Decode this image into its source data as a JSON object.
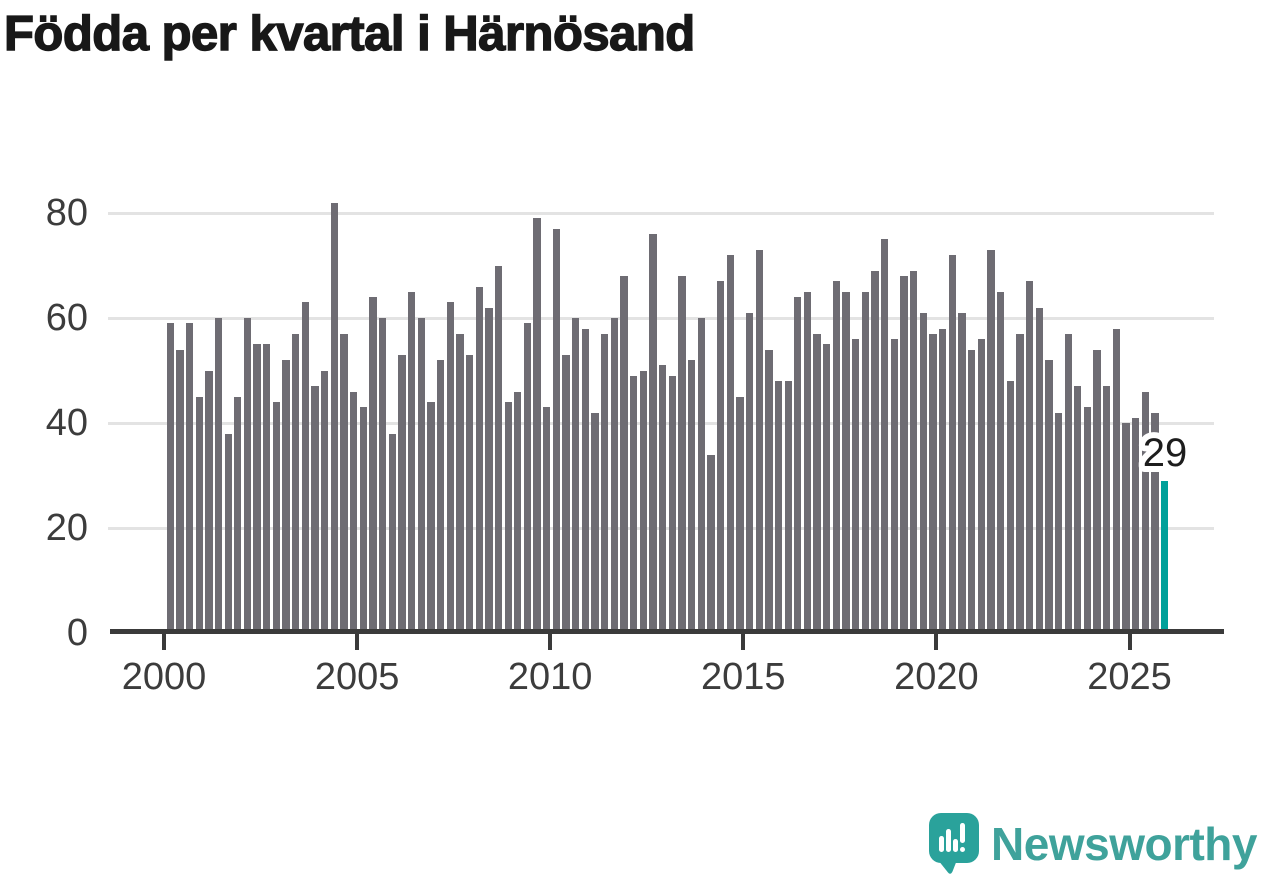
{
  "title": "Födda per kvartal i Härnösand",
  "chart_data": {
    "type": "bar",
    "title": "Födda per kvartal i Härnösand",
    "x_unit": "quarter",
    "frequency": "quarterly",
    "x_range": "2000 Q1 – 2025 Q4",
    "years": [
      {
        "year": 2000,
        "values": [
          59,
          54,
          59,
          45
        ]
      },
      {
        "year": 2001,
        "values": [
          50,
          60,
          38,
          45
        ]
      },
      {
        "year": 2002,
        "values": [
          60,
          55,
          55,
          44
        ]
      },
      {
        "year": 2003,
        "values": [
          52,
          57,
          63,
          47
        ]
      },
      {
        "year": 2004,
        "values": [
          50,
          82,
          57,
          46
        ]
      },
      {
        "year": 2005,
        "values": [
          43,
          64,
          60,
          38
        ]
      },
      {
        "year": 2006,
        "values": [
          53,
          65,
          60,
          44
        ]
      },
      {
        "year": 2007,
        "values": [
          52,
          63,
          57,
          53
        ]
      },
      {
        "year": 2008,
        "values": [
          66,
          62,
          70,
          44
        ]
      },
      {
        "year": 2009,
        "values": [
          46,
          59,
          79,
          43
        ]
      },
      {
        "year": 2010,
        "values": [
          77,
          53,
          60,
          58
        ]
      },
      {
        "year": 2011,
        "values": [
          42,
          57,
          60,
          68
        ]
      },
      {
        "year": 2012,
        "values": [
          49,
          50,
          76,
          51
        ]
      },
      {
        "year": 2013,
        "values": [
          49,
          68,
          52,
          60
        ]
      },
      {
        "year": 2014,
        "values": [
          34,
          67,
          72,
          45
        ]
      },
      {
        "year": 2015,
        "values": [
          61,
          73,
          54,
          48
        ]
      },
      {
        "year": 2016,
        "values": [
          48,
          64,
          65,
          57
        ]
      },
      {
        "year": 2017,
        "values": [
          55,
          67,
          65,
          56
        ]
      },
      {
        "year": 2018,
        "values": [
          65,
          69,
          75,
          56
        ]
      },
      {
        "year": 2019,
        "values": [
          68,
          69,
          61,
          57
        ]
      },
      {
        "year": 2020,
        "values": [
          58,
          72,
          61,
          54
        ]
      },
      {
        "year": 2021,
        "values": [
          56,
          73,
          65,
          48
        ]
      },
      {
        "year": 2022,
        "values": [
          57,
          67,
          62,
          52
        ]
      },
      {
        "year": 2023,
        "values": [
          42,
          57,
          47,
          43
        ]
      },
      {
        "year": 2024,
        "values": [
          54,
          47,
          58,
          40
        ]
      },
      {
        "year": 2025,
        "values": [
          41,
          46,
          42,
          29
        ]
      }
    ],
    "highlight": {
      "period": "2025 Q4",
      "value": 29,
      "label": "29",
      "color": "#00a09a"
    },
    "bar_color": "#6e6c73",
    "y_ticks": [
      0,
      20,
      40,
      60,
      80
    ],
    "y_tick_labels": [
      "0",
      "20",
      "40",
      "60",
      "80"
    ],
    "ylim": [
      0,
      85
    ],
    "x_tick_labels": [
      "2000",
      "2005",
      "2010",
      "2015",
      "2020",
      "2025"
    ],
    "grid": true,
    "legend": false
  },
  "colors": {
    "bar": "#6e6c73",
    "highlight": "#00a09a",
    "axis": "#3a3a3a",
    "gridline": "#e3e3e3",
    "title_text": "#181818",
    "tick_text": "#3c3c3c",
    "logo_teal": "#3fa29b",
    "logo_bubble": "#2aa29b"
  },
  "logo": {
    "text": "Newsworthy"
  }
}
